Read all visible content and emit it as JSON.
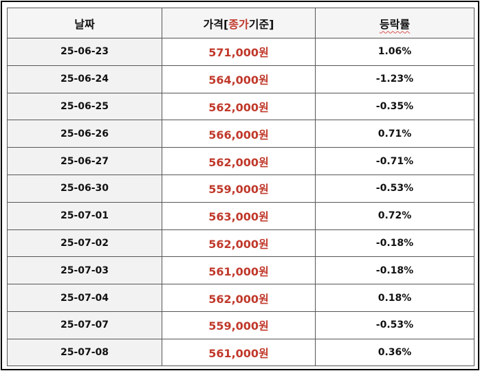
{
  "table": {
    "header": {
      "date": "날짜",
      "price_prefix": "가격[",
      "price_highlight": "종가",
      "price_suffix": "기준]",
      "change": "등락률"
    },
    "rows": [
      {
        "date": "25-06-23",
        "price": "571,000원",
        "change": "1.06%"
      },
      {
        "date": "25-06-24",
        "price": "564,000원",
        "change": "-1.23%"
      },
      {
        "date": "25-06-25",
        "price": "562,000원",
        "change": "-0.35%"
      },
      {
        "date": "25-06-26",
        "price": "566,000원",
        "change": "0.71%"
      },
      {
        "date": "25-06-27",
        "price": "562,000원",
        "change": "-0.71%"
      },
      {
        "date": "25-06-30",
        "price": "559,000원",
        "change": "-0.53%"
      },
      {
        "date": "25-07-01",
        "price": "563,000원",
        "change": "0.72%"
      },
      {
        "date": "25-07-02",
        "price": "562,000원",
        "change": "-0.18%"
      },
      {
        "date": "25-07-03",
        "price": "561,000원",
        "change": "-0.18%"
      },
      {
        "date": "25-07-04",
        "price": "562,000원",
        "change": "0.18%"
      },
      {
        "date": "25-07-07",
        "price": "559,000원",
        "change": "-0.53%"
      },
      {
        "date": "25-07-08",
        "price": "561,000원",
        "change": "0.36%"
      }
    ]
  },
  "colors": {
    "price_text": "#c0392b",
    "header_highlight": "#c0392b",
    "border": "#555555",
    "frame": "#000000",
    "date_cell_bg": "#f2f2f2"
  }
}
